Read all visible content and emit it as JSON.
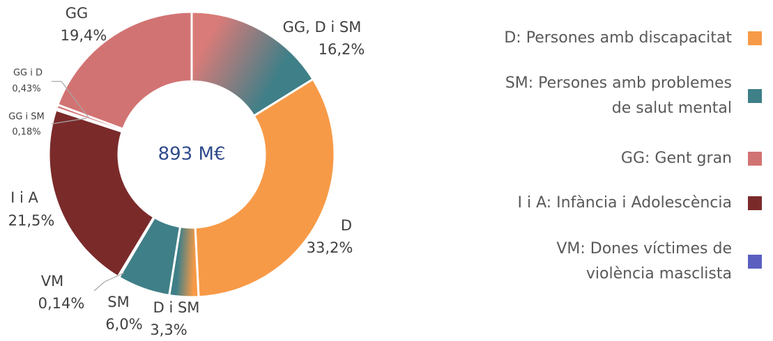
{
  "chart_data": {
    "type": "donut",
    "center_label": "893 M€",
    "categories": [
      "GG, D i SM",
      "D",
      "D i SM",
      "SM",
      "VM",
      "I i A",
      "GG i SM",
      "GG i D",
      "GG"
    ],
    "values": [
      16.2,
      33.2,
      3.3,
      6.0,
      0.14,
      21.5,
      0.18,
      0.43,
      19.4
    ],
    "value_labels": [
      "16,2%",
      "33,2%",
      "3,3%",
      "6,0%",
      "0,14%",
      "21,5%",
      "0,18%",
      "0,43%",
      "19,4%"
    ],
    "colors": [
      [
        "#d97b78",
        "#3f7f88"
      ],
      "#f79a47",
      [
        "#f79a47",
        "#3f7f88"
      ],
      "#3f7f88",
      "#5b5fbf",
      "#7b2a2a",
      "#d27373",
      "#d27373",
      "#d27373"
    ],
    "legend": [
      {
        "lines": [
          "D: Persones amb discapacitat"
        ],
        "color": "#f79a47"
      },
      {
        "lines": [
          "SM: Persones amb problemes",
          "de salut mental"
        ],
        "color": "#3f7f88"
      },
      {
        "lines": [
          "GG: Gent gran"
        ],
        "color": "#d27373"
      },
      {
        "lines": [
          "I i A: Infància i Adolescència"
        ],
        "color": "#7b2a2a"
      },
      {
        "lines": [
          "VM: Dones víctimes de",
          "violència masclista"
        ],
        "color": "#5b5fbf"
      }
    ]
  }
}
